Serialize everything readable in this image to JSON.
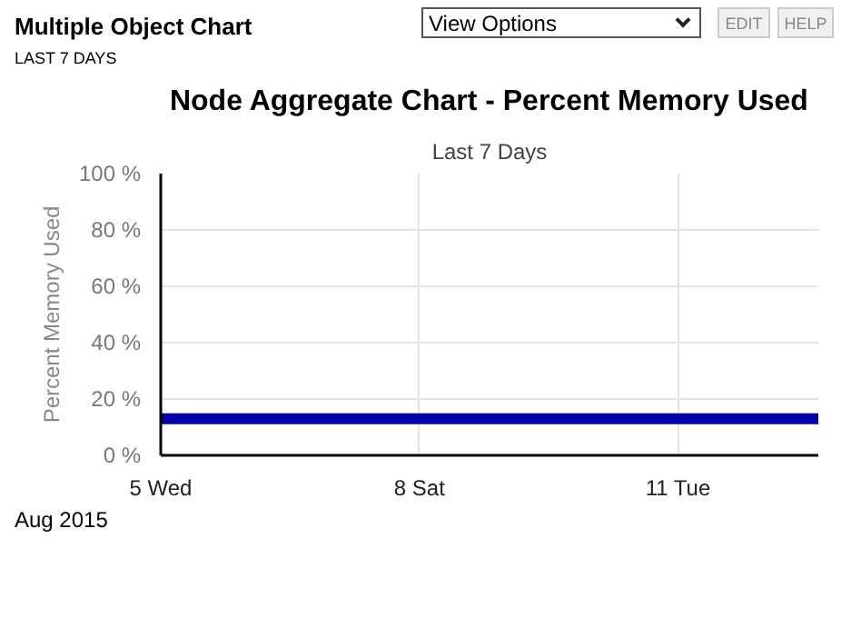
{
  "chart_data": {
    "type": "line",
    "title": "Node Aggregate Chart - Percent Memory Used",
    "subtitle": "Last 7 Days",
    "ylabel": "Percent Memory Used",
    "annotations": [
      "Multiple Object Chart",
      "LAST 7 DAYS",
      "View Options",
      "EDIT",
      "HELP",
      "Aug 2015"
    ],
    "x": [
      "2015-08-05",
      "2015-08-12T15:00"
    ],
    "series": [
      {
        "color": "#0000b0",
        "values": [
          13,
          13
        ]
      }
    ],
    "xlim": [
      "2015-08-05",
      "2015-08-12T15:00"
    ],
    "xticks": [
      {
        "value": "2015-08-05",
        "label": "5 Wed"
      },
      {
        "value": "2015-08-08",
        "label": "8 Sat"
      },
      {
        "value": "2015-08-11",
        "label": "11 Tue"
      }
    ],
    "ylim": [
      0,
      100
    ],
    "yticks": [
      {
        "value": 0,
        "label": "0 %"
      },
      {
        "value": 20,
        "label": "20 %"
      },
      {
        "value": 40,
        "label": "40 %"
      },
      {
        "value": 60,
        "label": "60 %"
      },
      {
        "value": 80,
        "label": "80 %"
      },
      {
        "value": 100,
        "label": "100 %"
      }
    ],
    "grid": true,
    "line_style": "solid",
    "marker": "none"
  }
}
